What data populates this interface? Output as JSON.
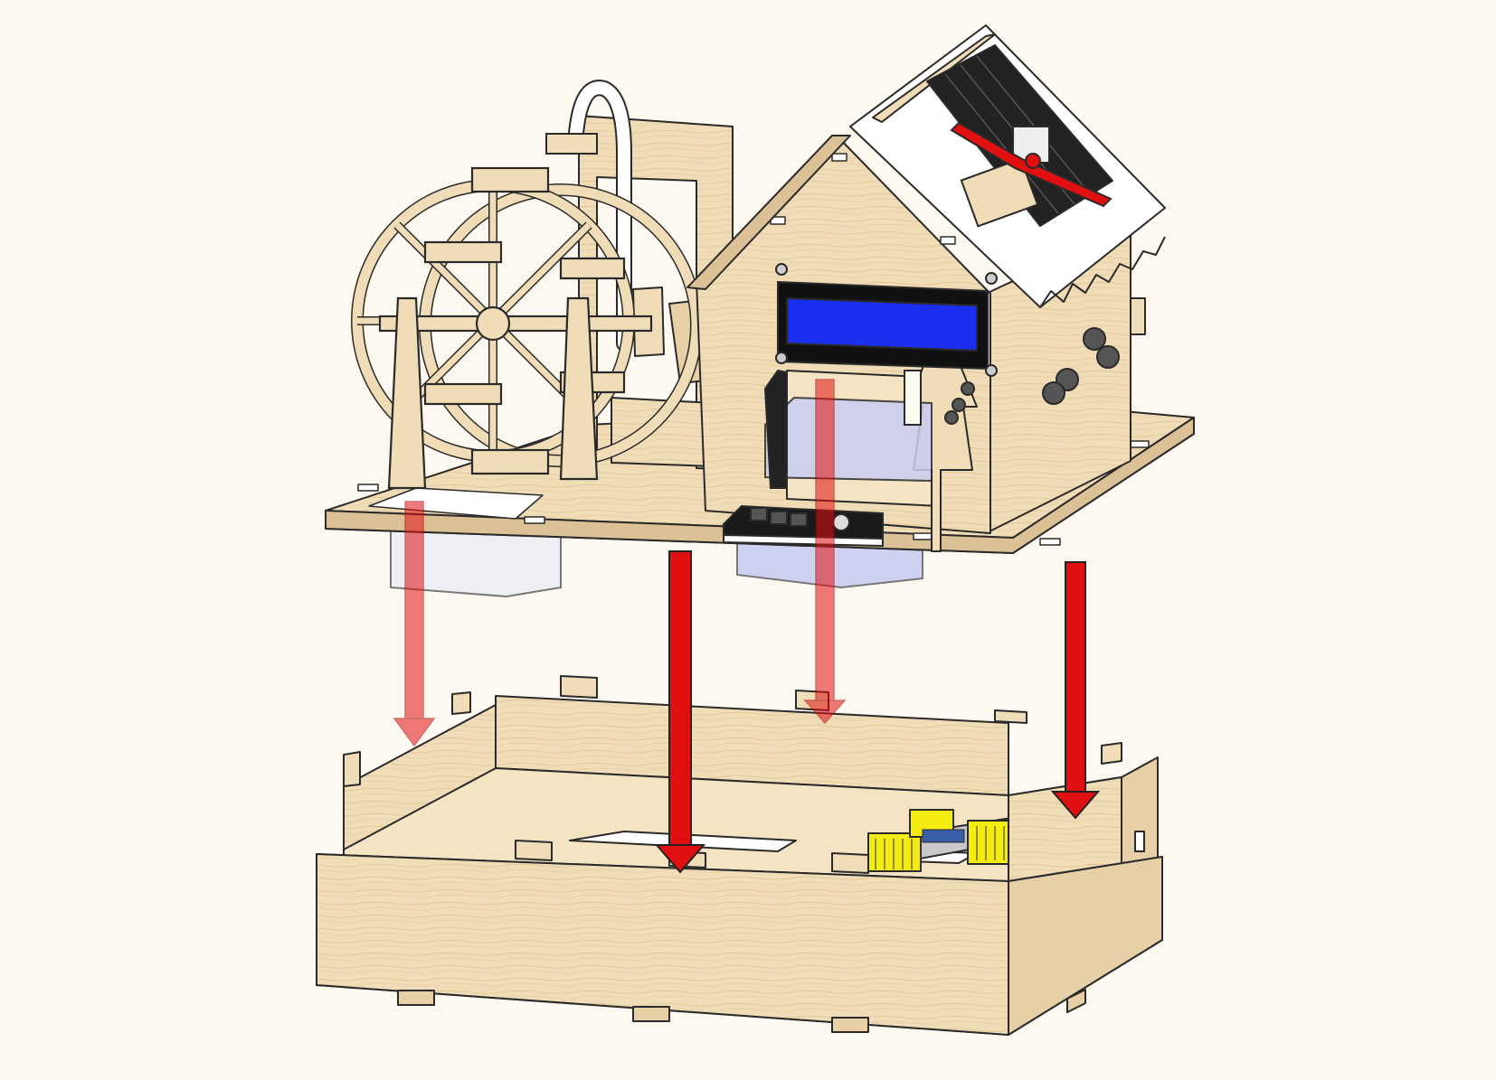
{
  "figure": {
    "type": "exploded-assembly-illustration",
    "components": [
      "upper-assembly-base-plate",
      "water-wheel",
      "water-pipe",
      "pump-stand",
      "house",
      "lcd-display",
      "solar-panel",
      "fan-propeller",
      "water-tank",
      "button-module",
      "lower-box",
      "controller-board"
    ],
    "arrow_count": 4,
    "colors": {
      "background": "#fdf9f1",
      "wood": "#f0dcb6",
      "wood_dark": "#dcc196",
      "outline": "#2a2a2a",
      "arrow": "#e01010",
      "lcd": "#1a2ff0",
      "solar_cell": "#2a2a2a",
      "header_yellow": "#f4ec10"
    }
  }
}
